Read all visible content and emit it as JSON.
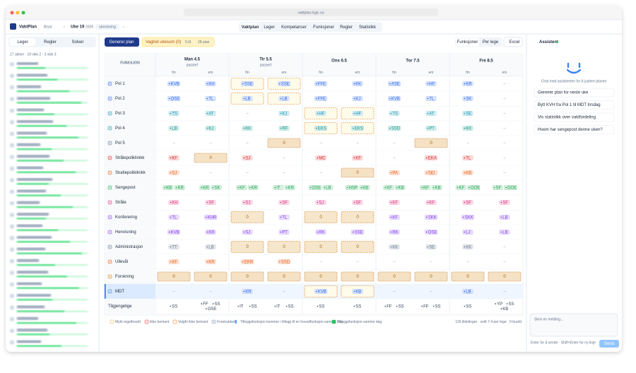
{
  "browser": {
    "url": "vaktplan.logic.no"
  },
  "header": {
    "app": "VaktPlan",
    "unit": "Bryst",
    "week": "Uke 19",
    "year": "2026",
    "badge": "ukevisning",
    "tabs": [
      "Vaktplan",
      "Leger",
      "Kompetanser",
      "Funksjoner",
      "Regler",
      "Statistikk"
    ]
  },
  "sidebar": {
    "tabs": [
      "Leger",
      "Regler",
      "Solver"
    ],
    "summary": "17 aktive · 19 vikk 2 · 3 vikk 3"
  },
  "toolbar": {
    "generate": "Generer plan",
    "warning": "Vaghet ukesum (0)",
    "hours": "5.0t",
    "plans": "28 plan",
    "views": [
      "Funksjoner",
      "Per lege"
    ],
    "export": "Excel"
  },
  "grid": {
    "corner": "FUNKSJON",
    "shifts": [
      "fm",
      "em"
    ],
    "days": [
      {
        "name": "Man 4.5",
        "note": "passert"
      },
      {
        "name": "Tir 5.5",
        "note": "passert"
      },
      {
        "name": "Ons 6.5"
      },
      {
        "name": "Tor 7.5"
      },
      {
        "name": "Fre 8.5"
      }
    ],
    "rows": [
      {
        "label": "Pol 1",
        "color": "#2563eb",
        "cells": [
          {
            "chips": [
              "KVB"
            ]
          },
          {
            "chips": [
              "KH"
            ]
          },
          {
            "chips": [
              "SSE"
            ],
            "state": "soft"
          },
          {
            "chips": [
              "SSE"
            ],
            "state": "soft"
          },
          {
            "chips": [
              "FFE"
            ]
          },
          {
            "chips": [
              "KK"
            ]
          },
          {
            "chips": [
              "ASE"
            ]
          },
          {
            "chips": [
              "HF"
            ]
          },
          {
            "chips": [
              "KR"
            ]
          },
          {
            "text": "–"
          }
        ]
      },
      {
        "label": "Pol 2",
        "color": "#2563eb",
        "cells": [
          {
            "chips": [
              "OSE"
            ]
          },
          {
            "chips": [
              "TL"
            ]
          },
          {
            "chips": [
              "LB"
            ],
            "state": "soft"
          },
          {
            "chips": [
              "LB"
            ],
            "state": "soft"
          },
          {
            "chips": [
              "FFE"
            ]
          },
          {
            "chips": [
              "KJ"
            ]
          },
          {
            "chips": [
              "KVB"
            ]
          },
          {
            "chips": [
              "TL"
            ]
          },
          {
            "chips": [
              "SK"
            ]
          },
          {
            "text": "–"
          }
        ]
      },
      {
        "label": "Pol 3",
        "color": "#0891b2",
        "cells": [
          {
            "chips": [
              "TS"
            ]
          },
          {
            "chips": [
              "AT"
            ]
          },
          {
            "text": "–"
          },
          {
            "chips": [
              "KJ"
            ]
          },
          {
            "chips": [
              "HF"
            ],
            "state": "soft"
          },
          {
            "chips": [
              "HF"
            ],
            "state": "soft"
          },
          {
            "chips": [
              "TS"
            ]
          },
          {
            "chips": [
              "AT"
            ]
          },
          {
            "chips": [
              "SE"
            ]
          },
          {
            "text": "–"
          }
        ]
      },
      {
        "label": "Pol 4",
        "color": "#0d9488",
        "cells": [
          {
            "chips": [
              "LB"
            ]
          },
          {
            "chips": [
              "KJ"
            ]
          },
          {
            "chips": [
              "KK"
            ]
          },
          {
            "chips": [
              "RF"
            ]
          },
          {
            "chips": [
              "EKS"
            ],
            "state": "soft"
          },
          {
            "chips": [
              "EKS"
            ],
            "state": "soft"
          },
          {
            "chips": [
              "SSD"
            ]
          },
          {
            "chips": [
              "PT"
            ]
          },
          {
            "chips": [
              "KK"
            ]
          },
          {
            "text": "–"
          }
        ]
      },
      {
        "label": "Pol 5",
        "color": "#64748b",
        "cells": [
          {
            "text": "–"
          },
          {
            "text": "–"
          },
          {
            "text": "–"
          },
          {
            "text": "0",
            "state": "open"
          },
          {
            "text": "–"
          },
          {
            "text": "–"
          },
          {
            "text": "–"
          },
          {
            "text": "0",
            "state": "open"
          },
          {
            "text": "–"
          },
          {
            "text": "–"
          }
        ]
      },
      {
        "label": "Strålepoliklinikk",
        "color": "#dc2626",
        "cells": [
          {
            "chips": [
              "KF"
            ]
          },
          {
            "text": "0",
            "state": "open"
          },
          {
            "chips": [
              "SJ"
            ]
          },
          {
            "text": "–"
          },
          {
            "chips": [
              "MC"
            ]
          },
          {
            "chips": [
              "KF"
            ]
          },
          {
            "text": "–"
          },
          {
            "chips": [
              "EKA"
            ]
          },
          {
            "chips": [
              "TL"
            ]
          },
          {
            "text": "–"
          }
        ]
      },
      {
        "label": "Studiepoliklinikk",
        "color": "#ea580c",
        "cells": [
          {
            "chips": [
              "SJ"
            ]
          },
          {
            "text": "–"
          },
          {
            "text": "–"
          },
          {
            "text": "–"
          },
          {
            "text": "–"
          },
          {
            "text": "0",
            "state": "open"
          },
          {
            "chips": [
              "PA"
            ]
          },
          {
            "chips": [
              "SEI"
            ]
          },
          {
            "chips": [
              "KB"
            ]
          },
          {
            "text": "–"
          }
        ]
      },
      {
        "label": "Sengepost",
        "color": "#16a34a",
        "cells": [
          {
            "chips": [
              "KB",
              "KR"
            ]
          },
          {
            "chips": [
              "KR",
              "SK"
            ]
          },
          {
            "chips": [
              "KF",
              "KR"
            ]
          },
          {
            "chips": [
              "IT",
              "KR"
            ]
          },
          {
            "chips": [
              "OSE",
              "LB"
            ]
          },
          {
            "chips": [
              "HSP",
              "KB"
            ]
          },
          {
            "chips": [
              "KF",
              "KB"
            ]
          },
          {
            "chips": [
              "KF",
              "KB"
            ]
          },
          {
            "chips": [
              "KF",
              "OOE"
            ]
          },
          {
            "chips": [
              "SF",
              "OOE"
            ]
          }
        ]
      },
      {
        "label": "Stråle",
        "color": "#db2777",
        "cells": [
          {
            "chips": [
              "KH"
            ]
          },
          {
            "chips": [
              "SF"
            ]
          },
          {
            "chips": [
              "SJ"
            ]
          },
          {
            "chips": [
              "SF"
            ]
          },
          {
            "chips": [
              "SJ"
            ]
          },
          {
            "chips": [
              "SF"
            ]
          },
          {
            "chips": [
              "KF"
            ]
          },
          {
            "chips": [
              "KF"
            ]
          },
          {
            "chips": [
              "SF"
            ]
          },
          {
            "chips": [
              "SF"
            ]
          }
        ]
      },
      {
        "label": "Konferering",
        "color": "#7c3aed",
        "cells": [
          {
            "chips": [
              "TL"
            ]
          },
          {
            "chips": [
              "KHR"
            ]
          },
          {
            "text": "0",
            "state": "soft"
          },
          {
            "chips": [
              "TL"
            ]
          },
          {
            "text": "0",
            "state": "soft"
          },
          {
            "text": "0",
            "state": "soft"
          },
          {
            "chips": [
              "KF"
            ]
          },
          {
            "chips": [
              "SKK"
            ]
          },
          {
            "chips": [
              "SKK"
            ]
          },
          {
            "chips": [
              "LB"
            ]
          }
        ]
      },
      {
        "label": "Henvisning",
        "color": "#7c3aed",
        "cells": [
          {
            "chips": [
              "KVB"
            ]
          },
          {
            "chips": [
              "KR"
            ]
          },
          {
            "chips": [
              "SJ"
            ]
          },
          {
            "chips": [
              "PT"
            ]
          },
          {
            "chips": [
              "RK"
            ]
          },
          {
            "chips": [
              "SSE"
            ]
          },
          {
            "chips": [
              "RK"
            ]
          },
          {
            "chips": [
              "OSE"
            ]
          },
          {
            "chips": [
              "LJ"
            ]
          },
          {
            "chips": [
              "LB"
            ]
          }
        ]
      },
      {
        "label": "Administrasjon",
        "color": "#64748b",
        "cells": [
          {
            "chips": [
              "TT"
            ]
          },
          {
            "chips": [
              "LB"
            ]
          },
          {
            "text": "0",
            "state": "soft"
          },
          {
            "text": "0",
            "state": "soft"
          },
          {
            "text": "0",
            "state": "soft"
          },
          {
            "text": "0",
            "state": "soft"
          },
          {
            "chips": [
              "KK"
            ]
          },
          {
            "chips": [
              "SE"
            ]
          },
          {
            "chips": [
              "KK"
            ]
          },
          {
            "text": "–"
          }
        ]
      },
      {
        "label": "Ullevål",
        "color": "#ea580c",
        "cells": [
          {
            "chips": [
              "KF"
            ]
          },
          {
            "chips": [
              "KR"
            ]
          },
          {
            "chips": [
              "EKR"
            ]
          },
          {
            "chips": [
              "SSD"
            ]
          },
          {
            "text": "–"
          },
          {
            "text": "–"
          },
          {
            "text": "–"
          },
          {
            "text": "–"
          },
          {
            "text": "–"
          },
          {
            "text": "–"
          }
        ]
      },
      {
        "label": "Forskning",
        "color": "#d97706",
        "cells": [
          {
            "text": "0",
            "state": "open"
          },
          {
            "text": "0",
            "state": "open"
          },
          {
            "text": "0",
            "state": "open"
          },
          {
            "text": "0",
            "state": "open"
          },
          {
            "text": "0",
            "state": "open"
          },
          {
            "text": "0",
            "state": "open"
          },
          {
            "text": "0",
            "state": "open"
          },
          {
            "text": "0",
            "state": "open"
          },
          {
            "text": "0",
            "state": "open"
          },
          {
            "text": "0",
            "state": "open"
          }
        ]
      },
      {
        "label": "MDT",
        "color": "#2563eb",
        "highlight": true,
        "cells": [
          {
            "text": "–"
          },
          {
            "text": "–"
          },
          {
            "chips": [
              "KR"
            ]
          },
          {
            "text": "–"
          },
          {
            "chips": [
              "KVB"
            ],
            "state": "soft"
          },
          {
            "chips": [
              "KB"
            ],
            "state": "soft"
          },
          {
            "text": "–"
          },
          {
            "text": "–"
          },
          {
            "chips": [
              "LB"
            ]
          },
          {
            "text": "–"
          }
        ]
      },
      {
        "label": "Tilgjengelige",
        "color": "#334155",
        "plain": true,
        "cells": [
          {
            "chips": [
              "SS"
            ]
          },
          {
            "chips": [
              "FF",
              "SS",
              "OSE"
            ]
          },
          {
            "chips": [
              "IT",
              "SS"
            ]
          },
          {
            "chips": [
              "IT",
              "SS"
            ]
          },
          {
            "chips": [
              "SS"
            ]
          },
          {
            "chips": [
              "SS"
            ]
          },
          {
            "chips": [
              "FF",
              "SS"
            ]
          },
          {
            "chips": [
              "FF",
              "SS"
            ]
          },
          {
            "chips": [
              "SS"
            ]
          },
          {
            "chips": [
              "YP",
              "SS",
              "KB"
            ]
          }
        ]
      }
    ]
  },
  "legend": [
    "Mykt regelbrudd",
    "Ikke bemant",
    "Valgfri ikke bemant",
    "Foretrukket",
    "Tilleggsfunksjon kommer i tillegg til en hovedfunksjon samme dag",
    "Tilleggsfunksjon samme dag"
  ],
  "stats": "116 tildelinger · snitt 7.4 per lege · 0 brudd",
  "assistant": {
    "title": "Assistent",
    "intro": "Chat med assistenten for å justere planen",
    "suggestions": [
      "Generer plan for neste uke",
      "Bytt KVH fra Pol 1 til MDT tirsdag",
      "Vis statistikk over vaktfordeling",
      "Hvem har sengepost denne uken?"
    ],
    "placeholder": "Skriv en melding...",
    "hint": "Enter for å sende · Shift+Enter for ny linje",
    "send": "Send"
  }
}
